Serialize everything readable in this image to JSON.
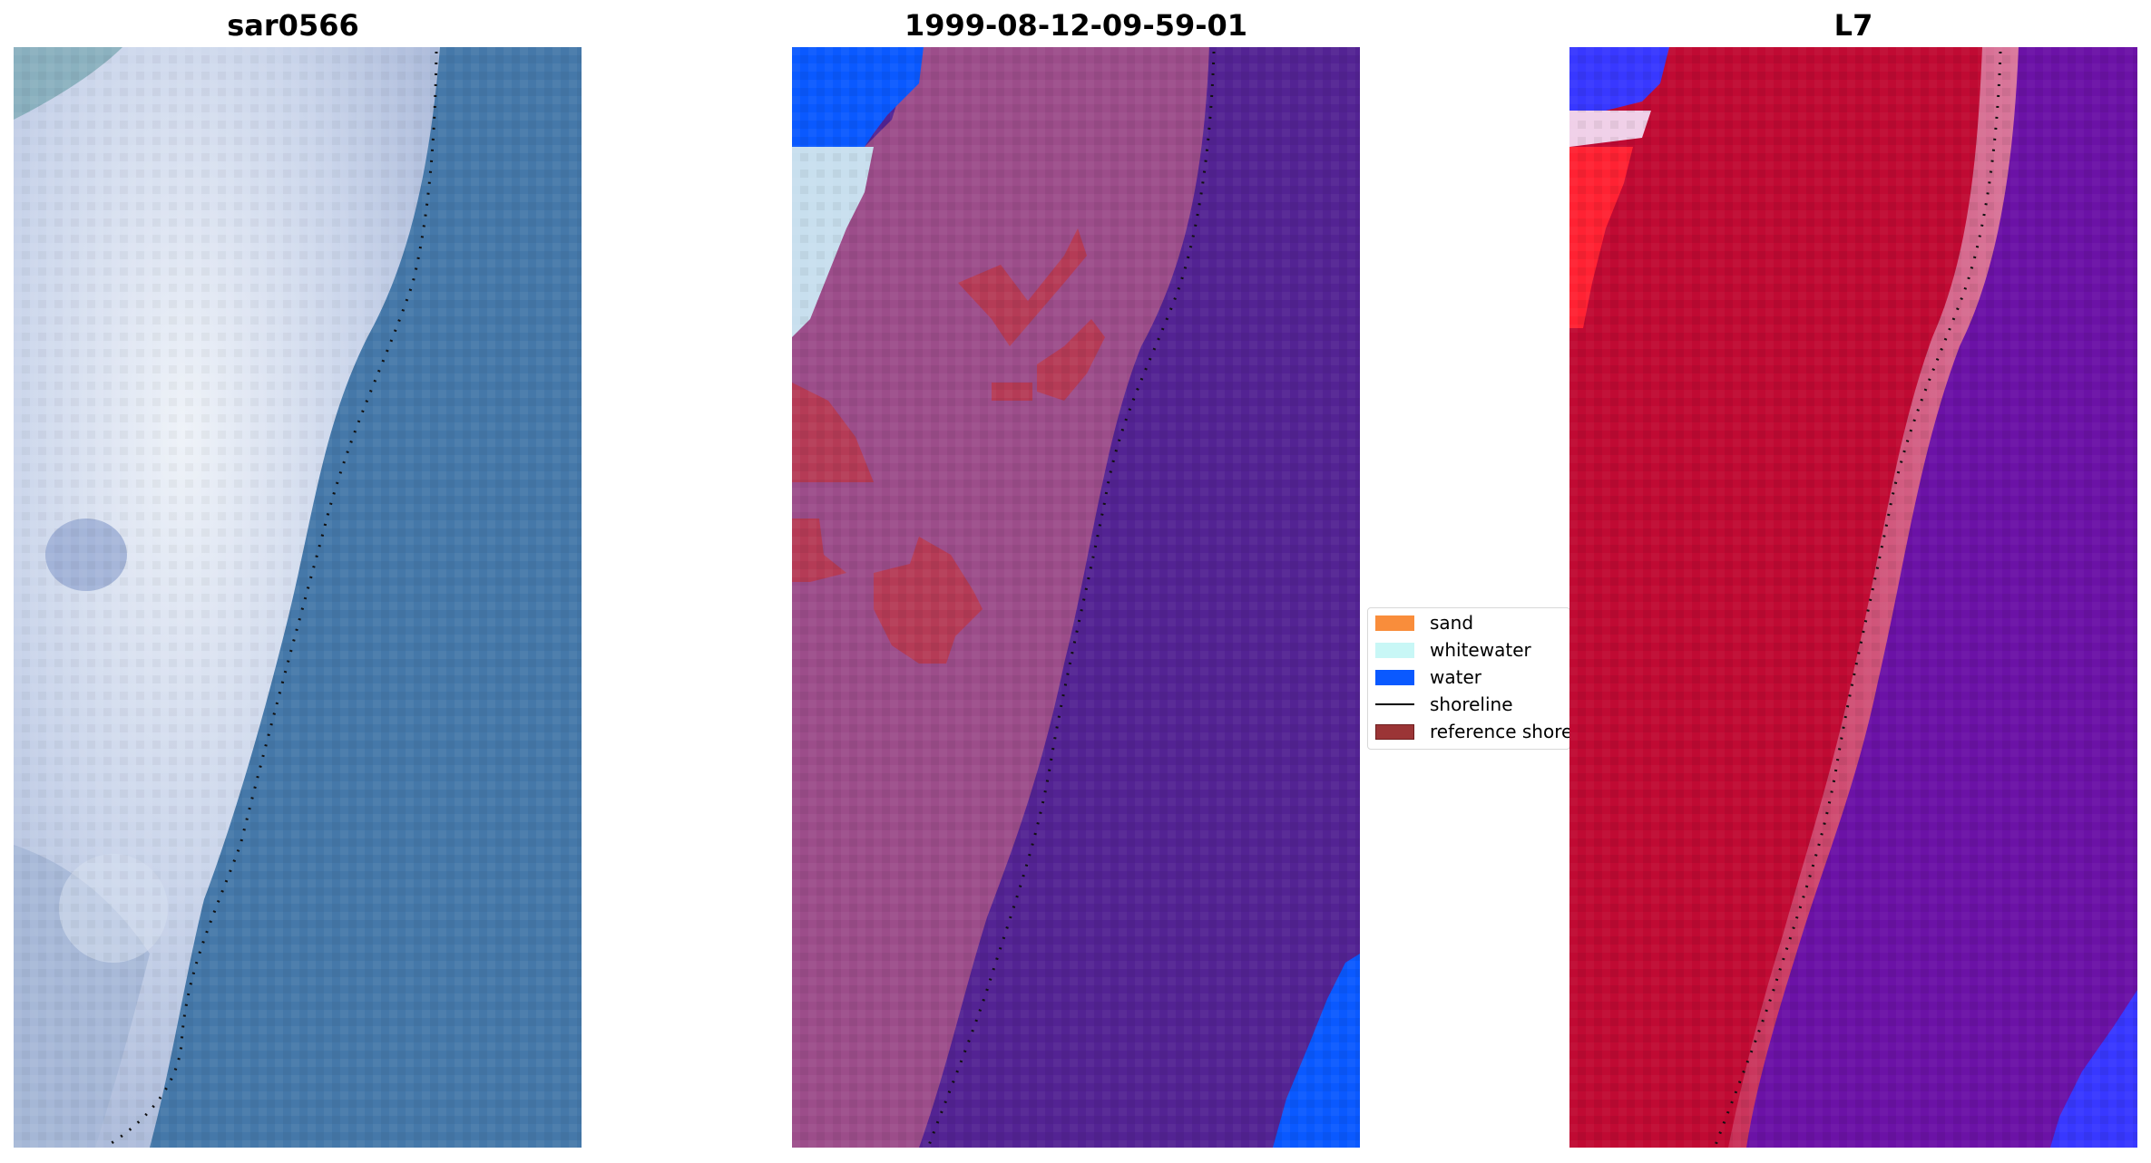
{
  "panels": [
    {
      "title": "sar0566"
    },
    {
      "title": "1999-08-12-09-59-01"
    },
    {
      "title": "L7"
    }
  ],
  "legend": {
    "items": [
      {
        "label": "sand",
        "color": "#f98d3b",
        "kind": "patch"
      },
      {
        "label": "whitewater",
        "color": "#c8f7f6",
        "kind": "patch"
      },
      {
        "label": "water",
        "color": "#0a59ff",
        "kind": "patch"
      },
      {
        "label": "shoreline",
        "color": "#000000",
        "kind": "line"
      },
      {
        "label": "reference shoreline buffer",
        "color": "#9b3536",
        "kind": "patch"
      }
    ]
  },
  "colors": {
    "sar_water": "#4578a9",
    "sar_land": "#c4cfe6",
    "sar_surf": "#dfe7f3",
    "classified_land": "#9c4d8a",
    "classified_water": "#532393",
    "classified_sand_patch": "#b53b56",
    "classified_water_blue": "#0a59ff",
    "l7_land": "#c00a33",
    "l7_water": "#6b12a6",
    "l7_blue": "#3838ff"
  }
}
